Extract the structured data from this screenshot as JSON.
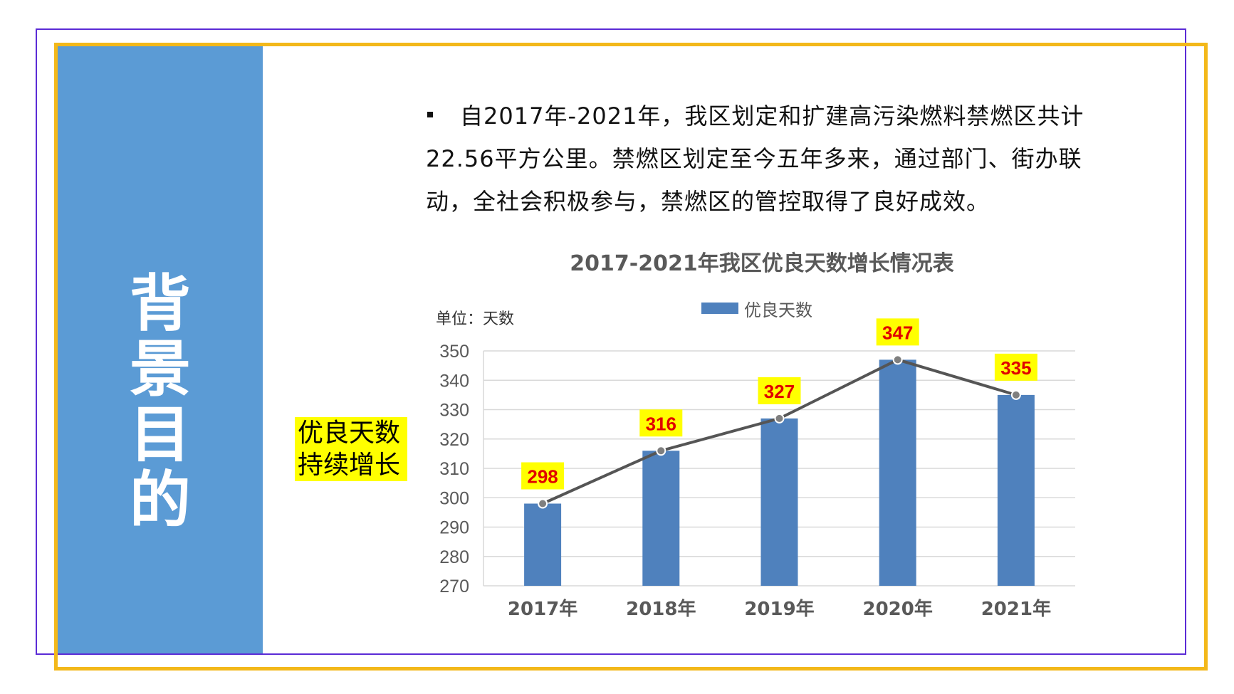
{
  "sidebar": {
    "title": "背景目的"
  },
  "bullet": {
    "text": "自2017年-2021年，我区划定和扩建高污染燃料禁燃区共计22.56平方公里。禁燃区划定至今五年多来，通过部门、街办联动，全社会积极参与，禁燃区的管控取得了良好成效。"
  },
  "highlight": {
    "line1": "优良天数",
    "line2": "持续增长"
  },
  "colors": {
    "sidebar": "#5b9bd5",
    "bar": "#4f81bd",
    "line": "#555555",
    "label_bg": "#ffff00",
    "label_text": "#e00000",
    "frame_outer": "#f3b81a",
    "frame_inner": "#5b2bd6"
  },
  "chart_data": {
    "type": "bar",
    "title": "2017-2021年我区优良天数增长情况表",
    "unit_label": "单位：天数",
    "legend": "优良天数",
    "categories": [
      "2017年",
      "2018年",
      "2019年",
      "2020年",
      "2021年"
    ],
    "series": [
      {
        "name": "优良天数",
        "values": [
          298,
          316,
          327,
          347,
          335
        ]
      }
    ],
    "overlay_line": true,
    "ylim": [
      270,
      350
    ],
    "yticks": [
      270,
      280,
      290,
      300,
      310,
      320,
      330,
      340,
      350
    ],
    "grid": true,
    "legend_position": "top"
  }
}
